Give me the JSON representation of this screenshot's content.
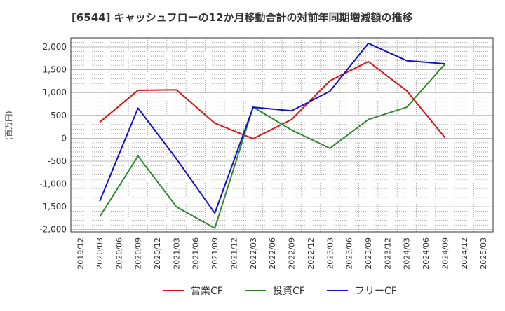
{
  "title": "[6544]  キャッシュフローの12か月移動合計の対前年同期増減額の推移",
  "chart_data": {
    "type": "line",
    "title": "[6544]  キャッシュフローの12か月移動合計の対前年同期増減額の推移",
    "ylabel": "(百万円)",
    "xlabel": "",
    "x": [
      "2019/12",
      "2020/03",
      "2020/06",
      "2020/09",
      "2020/12",
      "2021/03",
      "2021/06",
      "2021/09",
      "2021/12",
      "2022/03",
      "2022/06",
      "2022/09",
      "2022/12",
      "2023/03",
      "2023/06",
      "2023/09",
      "2023/12",
      "2024/03",
      "2024/06",
      "2024/09",
      "2024/12",
      "2025/03"
    ],
    "ylim": [
      -2050,
      2200
    ],
    "yticks": [
      -2000,
      -1500,
      -1000,
      -500,
      0,
      500,
      1000,
      1500,
      2000
    ],
    "ytick_labels": [
      "-2,000",
      "-1,500",
      "-1,000",
      "-500",
      "0",
      "500",
      "1,000",
      "1,500",
      "2,000"
    ],
    "grid": true,
    "legend": "bottom",
    "series": [
      {
        "name": "営業CF",
        "color": "#e01010",
        "points": [
          [
            "2020/03",
            350
          ],
          [
            "2020/09",
            1050
          ],
          [
            "2021/03",
            1060
          ],
          [
            "2021/09",
            330
          ],
          [
            "2022/03",
            -10
          ],
          [
            "2022/09",
            410
          ],
          [
            "2023/03",
            1260
          ],
          [
            "2023/09",
            1680
          ],
          [
            "2024/03",
            1040
          ],
          [
            "2024/09",
            10
          ]
        ]
      },
      {
        "name": "投資CF",
        "color": "#2e8b2e",
        "points": [
          [
            "2020/03",
            -1720
          ],
          [
            "2020/09",
            -390
          ],
          [
            "2021/03",
            -1500
          ],
          [
            "2021/09",
            -1970
          ],
          [
            "2022/03",
            680
          ],
          [
            "2022/09",
            180
          ],
          [
            "2023/03",
            -220
          ],
          [
            "2023/09",
            410
          ],
          [
            "2024/03",
            680
          ],
          [
            "2024/09",
            1630
          ]
        ]
      },
      {
        "name": "フリーCF",
        "color": "#1010d0",
        "points": [
          [
            "2020/03",
            -1380
          ],
          [
            "2020/09",
            660
          ],
          [
            "2021/03",
            -450
          ],
          [
            "2021/09",
            -1640
          ],
          [
            "2022/03",
            680
          ],
          [
            "2022/09",
            600
          ],
          [
            "2023/03",
            1030
          ],
          [
            "2023/09",
            2080
          ],
          [
            "2024/03",
            1700
          ],
          [
            "2024/09",
            1630
          ]
        ]
      }
    ]
  }
}
